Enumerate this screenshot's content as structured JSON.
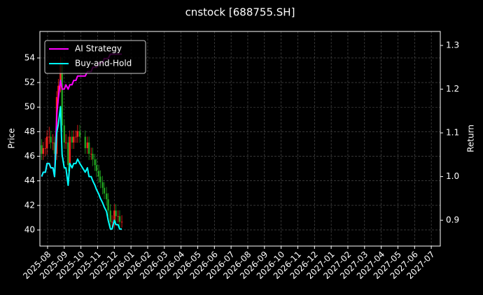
{
  "chart_data": {
    "type": "candlestick",
    "title": "cnstock [688755.SH]",
    "ylabel": "Price",
    "y2label": "Return",
    "x": [
      2025.5538,
      2025.5618,
      2025.5726,
      2025.5806,
      2025.5914,
      2025.5995,
      2025.6102,
      2025.6183,
      2025.629,
      2025.6371,
      2025.6478,
      2025.6559,
      2025.6667,
      2025.675,
      2025.6861,
      2025.6944,
      2025.7056,
      2025.7139,
      2025.725,
      2025.7333,
      2025.7444,
      2025.7715,
      2025.7823,
      2025.7903,
      2025.8011,
      2025.8091,
      2025.8199,
      2025.828,
      2025.8389,
      2025.8472,
      2025.8583,
      2025.8667,
      2025.8778,
      2025.8861,
      2025.8972,
      2025.9056,
      2025.9167,
      2025.9247,
      2025.9355,
      2025.9435,
      2025.9543
    ],
    "open": [
      46.9,
      46.2,
      46.66,
      46.66,
      47.59,
      47.59,
      47.12,
      47.12,
      46.2,
      50.82,
      51.74,
      53.59,
      48.51,
      47.12,
      47.12,
      45.28,
      47.59,
      47.12,
      47.59,
      47.59,
      48.05,
      47.59,
      46.66,
      47.12,
      46.2,
      46.2,
      45.74,
      45.28,
      44.81,
      44.35,
      43.89,
      43.43,
      42.97,
      42.5,
      41.58,
      40.66,
      40.66,
      41.58,
      41.12,
      41.12,
      40.66
    ],
    "high": [
      47.4,
      47.16,
      47.5,
      48.1,
      48.4,
      48.09,
      47.8,
      47.62,
      51.3,
      52.3,
      54.1,
      54.0,
      49.0,
      47.8,
      47.6,
      48.1,
      48.1,
      48.1,
      48.1,
      48.55,
      48.55,
      48.1,
      47.6,
      47.6,
      46.7,
      46.7,
      46.2,
      45.8,
      45.3,
      44.85,
      44.4,
      43.9,
      43.5,
      43.0,
      42.1,
      41.2,
      42.1,
      42.1,
      41.6,
      41.6,
      41.2
    ],
    "low": [
      45.7,
      45.7,
      46.0,
      46.16,
      47.0,
      46.62,
      46.5,
      45.7,
      45.7,
      50.3,
      51.2,
      48.0,
      46.6,
      46.6,
      44.8,
      44.8,
      46.6,
      46.6,
      47.1,
      47.1,
      47.1,
      46.2,
      46.2,
      45.7,
      45.7,
      45.2,
      44.8,
      44.3,
      43.85,
      43.4,
      42.9,
      42.5,
      42.0,
      41.1,
      40.2,
      40.2,
      40.2,
      40.6,
      40.6,
      40.2,
      40.2
    ],
    "close": [
      46.2,
      46.66,
      46.66,
      47.59,
      47.59,
      47.12,
      47.12,
      46.2,
      50.82,
      51.74,
      53.59,
      48.51,
      47.12,
      47.12,
      45.28,
      47.59,
      47.12,
      47.59,
      47.59,
      48.05,
      47.59,
      46.66,
      47.12,
      46.2,
      46.2,
      45.74,
      45.28,
      44.81,
      44.35,
      43.89,
      43.43,
      42.97,
      42.5,
      41.58,
      40.66,
      40.66,
      41.58,
      41.12,
      41.12,
      40.66,
      40.66
    ],
    "up_color": "#ff2020",
    "down_color": "#20a020",
    "series": [
      {
        "name": "AI Strategy",
        "color": "#ff00ff",
        "axis": "y2",
        "values": [
          1.0,
          1.01,
          1.01,
          1.03,
          1.03,
          1.02,
          1.02,
          1.0,
          1.14,
          1.18,
          1.22,
          1.2,
          1.2,
          1.21,
          1.2,
          1.21,
          1.21,
          1.22,
          1.22,
          1.23,
          1.23,
          1.23,
          1.24,
          1.24,
          1.24,
          1.25,
          1.25,
          1.25,
          1.26,
          1.26,
          1.26,
          1.27,
          1.27,
          1.27,
          1.28,
          1.28,
          1.28,
          1.28,
          1.28,
          1.28,
          1.28
        ]
      },
      {
        "name": "Buy-and-Hold",
        "color": "#00ffff",
        "axis": "y2",
        "values": [
          1.0,
          1.01,
          1.01,
          1.03,
          1.03,
          1.02,
          1.02,
          1.0,
          1.1,
          1.12,
          1.16,
          1.05,
          1.02,
          1.02,
          0.98,
          1.03,
          1.02,
          1.03,
          1.03,
          1.04,
          1.03,
          1.01,
          1.02,
          1.0,
          1.0,
          0.99,
          0.98,
          0.97,
          0.96,
          0.95,
          0.94,
          0.93,
          0.92,
          0.9,
          0.88,
          0.88,
          0.9,
          0.89,
          0.89,
          0.88,
          0.88
        ]
      }
    ],
    "xlim": [
      2025.545,
      2027.545
    ],
    "xticks": [
      {
        "value": 2025.5833,
        "label": "2025-08"
      },
      {
        "value": 2025.6667,
        "label": "2025-09"
      },
      {
        "value": 2025.75,
        "label": "2025-10"
      },
      {
        "value": 2025.8333,
        "label": "2025-11"
      },
      {
        "value": 2025.9167,
        "label": "2025-12"
      },
      {
        "value": 2026.0,
        "label": "2026-01"
      },
      {
        "value": 2026.0833,
        "label": "2026-02"
      },
      {
        "value": 2026.1667,
        "label": "2026-03"
      },
      {
        "value": 2026.25,
        "label": "2026-04"
      },
      {
        "value": 2026.3333,
        "label": "2026-05"
      },
      {
        "value": 2026.4167,
        "label": "2026-06"
      },
      {
        "value": 2026.5,
        "label": "2026-07"
      },
      {
        "value": 2026.5833,
        "label": "2026-08"
      },
      {
        "value": 2026.6667,
        "label": "2026-09"
      },
      {
        "value": 2026.75,
        "label": "2026-10"
      },
      {
        "value": 2026.8333,
        "label": "2026-11"
      },
      {
        "value": 2026.9167,
        "label": "2026-12"
      },
      {
        "value": 2027.0,
        "label": "2027-01"
      },
      {
        "value": 2027.0833,
        "label": "2027-02"
      },
      {
        "value": 2027.1667,
        "label": "2027-03"
      },
      {
        "value": 2027.25,
        "label": "2027-04"
      },
      {
        "value": 2027.3333,
        "label": "2027-05"
      },
      {
        "value": 2027.4167,
        "label": "2027-06"
      },
      {
        "value": 2027.5,
        "label": "2027-07"
      }
    ],
    "ylim": [
      38.69,
      56.16
    ],
    "yticks": [
      40,
      42,
      44,
      46,
      48,
      50,
      52,
      54
    ],
    "y2lim": [
      0.841,
      1.332
    ],
    "y2ticks": [
      0.9,
      {
        "value": 1,
        "label": "1.0"
      },
      1.1,
      1.2,
      1.3
    ],
    "grid": true,
    "legend": "upper left"
  }
}
